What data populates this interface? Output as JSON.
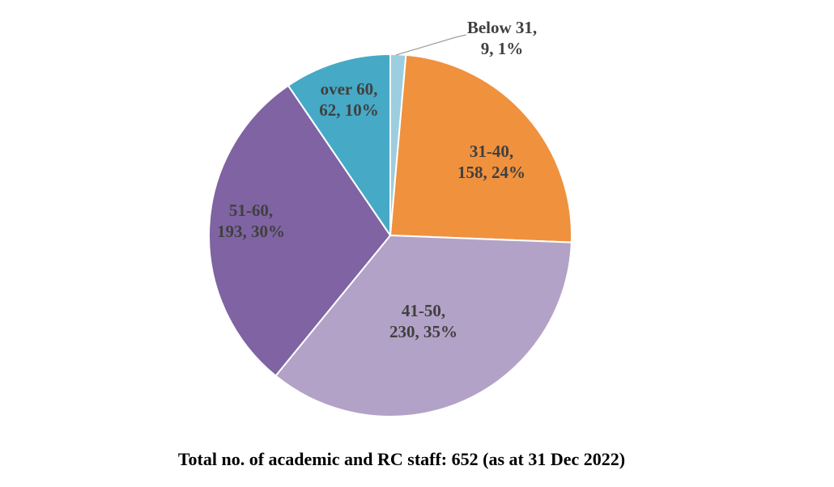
{
  "chart_data": {
    "type": "pie",
    "title": "Total no. of academic and RC staff: 652 (as at 31 Dec 2022)",
    "total": 652,
    "direction": "clockwise",
    "start_angle_deg": 0,
    "legend_position": "none",
    "data_labels_format": "category, value, percent",
    "label_color": "#404040",
    "title_color": "#000000",
    "slice_border_color": "#ffffff",
    "leader_line_color": "#9e9e9e",
    "background_color": "#ffffff",
    "slices": [
      {
        "category": "Below 31",
        "value": 9,
        "percent": "1%",
        "color": "#9cceдf",
        "label_text": "Below 31,\n9, 1%",
        "label_placement": "outside-callout"
      },
      {
        "category": "31-40",
        "value": 158,
        "percent": "24%",
        "color": "#f0913e",
        "label_text": "31-40,\n158, 24%",
        "label_placement": "inside"
      },
      {
        "category": "41-50",
        "value": 230,
        "percent": "35%",
        "color": "#b3a2c7",
        "label_text": "41-50,\n230, 35%",
        "label_placement": "inside"
      },
      {
        "category": "51-60",
        "value": 193,
        "percent": "30%",
        "color": "#7f63a2",
        "label_text": "51-60,\n193, 30%",
        "label_placement": "inside"
      },
      {
        "category": "over 60",
        "value": 62,
        "percent": "10%",
        "color": "#46a9c6",
        "label_text": "over 60,\n62, 10%",
        "label_placement": "inside"
      }
    ]
  }
}
